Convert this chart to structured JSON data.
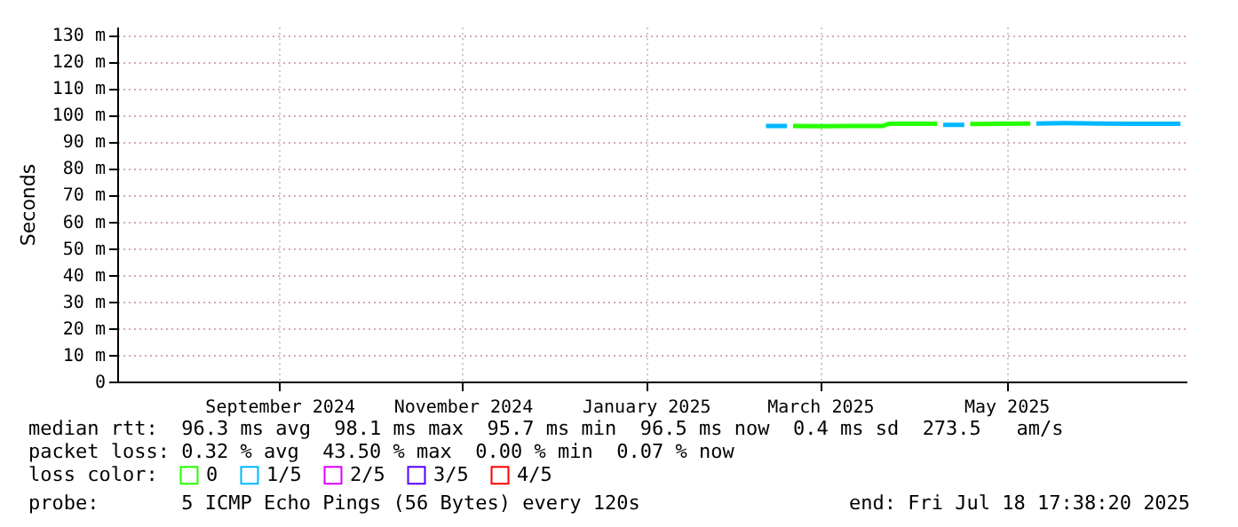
{
  "chart_data": {
    "type": "line",
    "ylabel": "Seconds",
    "legend_title": "loss color:",
    "legend": "bottom left",
    "grid": true,
    "marker": "none",
    "line_style": "solid",
    "xlim": [
      "2024-07-24",
      "2025-07-15"
    ],
    "xticks": [
      {
        "value": "2024-09-16",
        "label": "September 2024"
      },
      {
        "value": "2024-11-16",
        "label": "November 2024"
      },
      {
        "value": "2025-01-16",
        "label": "January 2025"
      },
      {
        "value": "2025-03-15",
        "label": "March 2025"
      },
      {
        "value": "2025-05-16",
        "label": "May 2025"
      }
    ],
    "ylim": [
      0,
      133
    ],
    "yticks": [
      0,
      {
        "value": 10,
        "label": "10 m"
      },
      {
        "value": 20,
        "label": "20 m"
      },
      {
        "value": 30,
        "label": "30 m"
      },
      {
        "value": 40,
        "label": "40 m"
      },
      {
        "value": 50,
        "label": "50 m"
      },
      {
        "value": 60,
        "label": "60 m"
      },
      {
        "value": 70,
        "label": "70 m"
      },
      {
        "value": 80,
        "label": "80 m"
      },
      {
        "value": 90,
        "label": "90 m"
      },
      {
        "value": 100,
        "label": "100 m"
      },
      {
        "value": 110,
        "label": "110 m"
      },
      {
        "value": 120,
        "label": "120 m"
      },
      {
        "value": 130,
        "label": "130 m"
      }
    ],
    "series": [
      {
        "name": "0",
        "color": "#26ff00",
        "x": [
          "2025-03-06",
          "2025-03-15",
          "2025-03-25",
          "2025-04-05",
          "2025-04-07",
          "2025-04-15",
          "2025-04-23",
          "2025-04-28",
          "2025-05-04",
          "2025-05-05",
          "2025-05-15",
          "2025-05-24"
        ],
        "values": [
          95.8,
          95.7,
          95.8,
          95.8,
          96.6,
          96.6,
          96.6,
          null,
          96.6,
          96.5,
          96.6,
          96.7
        ]
      },
      {
        "name": "1/5",
        "color": "#00b8ff",
        "x": [
          "2025-02-25",
          "2025-03-04",
          "2025-03-10",
          "2025-04-25",
          "2025-05-02",
          "2025-05-15",
          "2025-05-26",
          "2025-06-05",
          "2025-06-15",
          "2025-06-25",
          "2025-07-05",
          "2025-07-13"
        ],
        "values": [
          95.8,
          95.8,
          null,
          96.2,
          96.2,
          null,
          96.7,
          96.8,
          96.7,
          96.6,
          96.6,
          96.6
        ]
      },
      {
        "name": "2/5",
        "color": "#dd00ff"
      },
      {
        "name": "3/5",
        "color": "#5500ff"
      },
      {
        "name": "4/5",
        "color": "#ff0000"
      }
    ],
    "annotations": [
      "median rtt:  96.3 ms avg  98.1 ms max  95.7 ms min  96.5 ms now  0.4 ms sd  273.5   am/s",
      "packet loss: 0.32 % avg  43.50 % max  0.00 % min  0.07 % now",
      "probe:       5 ICMP Echo Pings (56 Bytes) every 120s",
      "end: Fri Jul 18 17:38:20 2025"
    ]
  }
}
